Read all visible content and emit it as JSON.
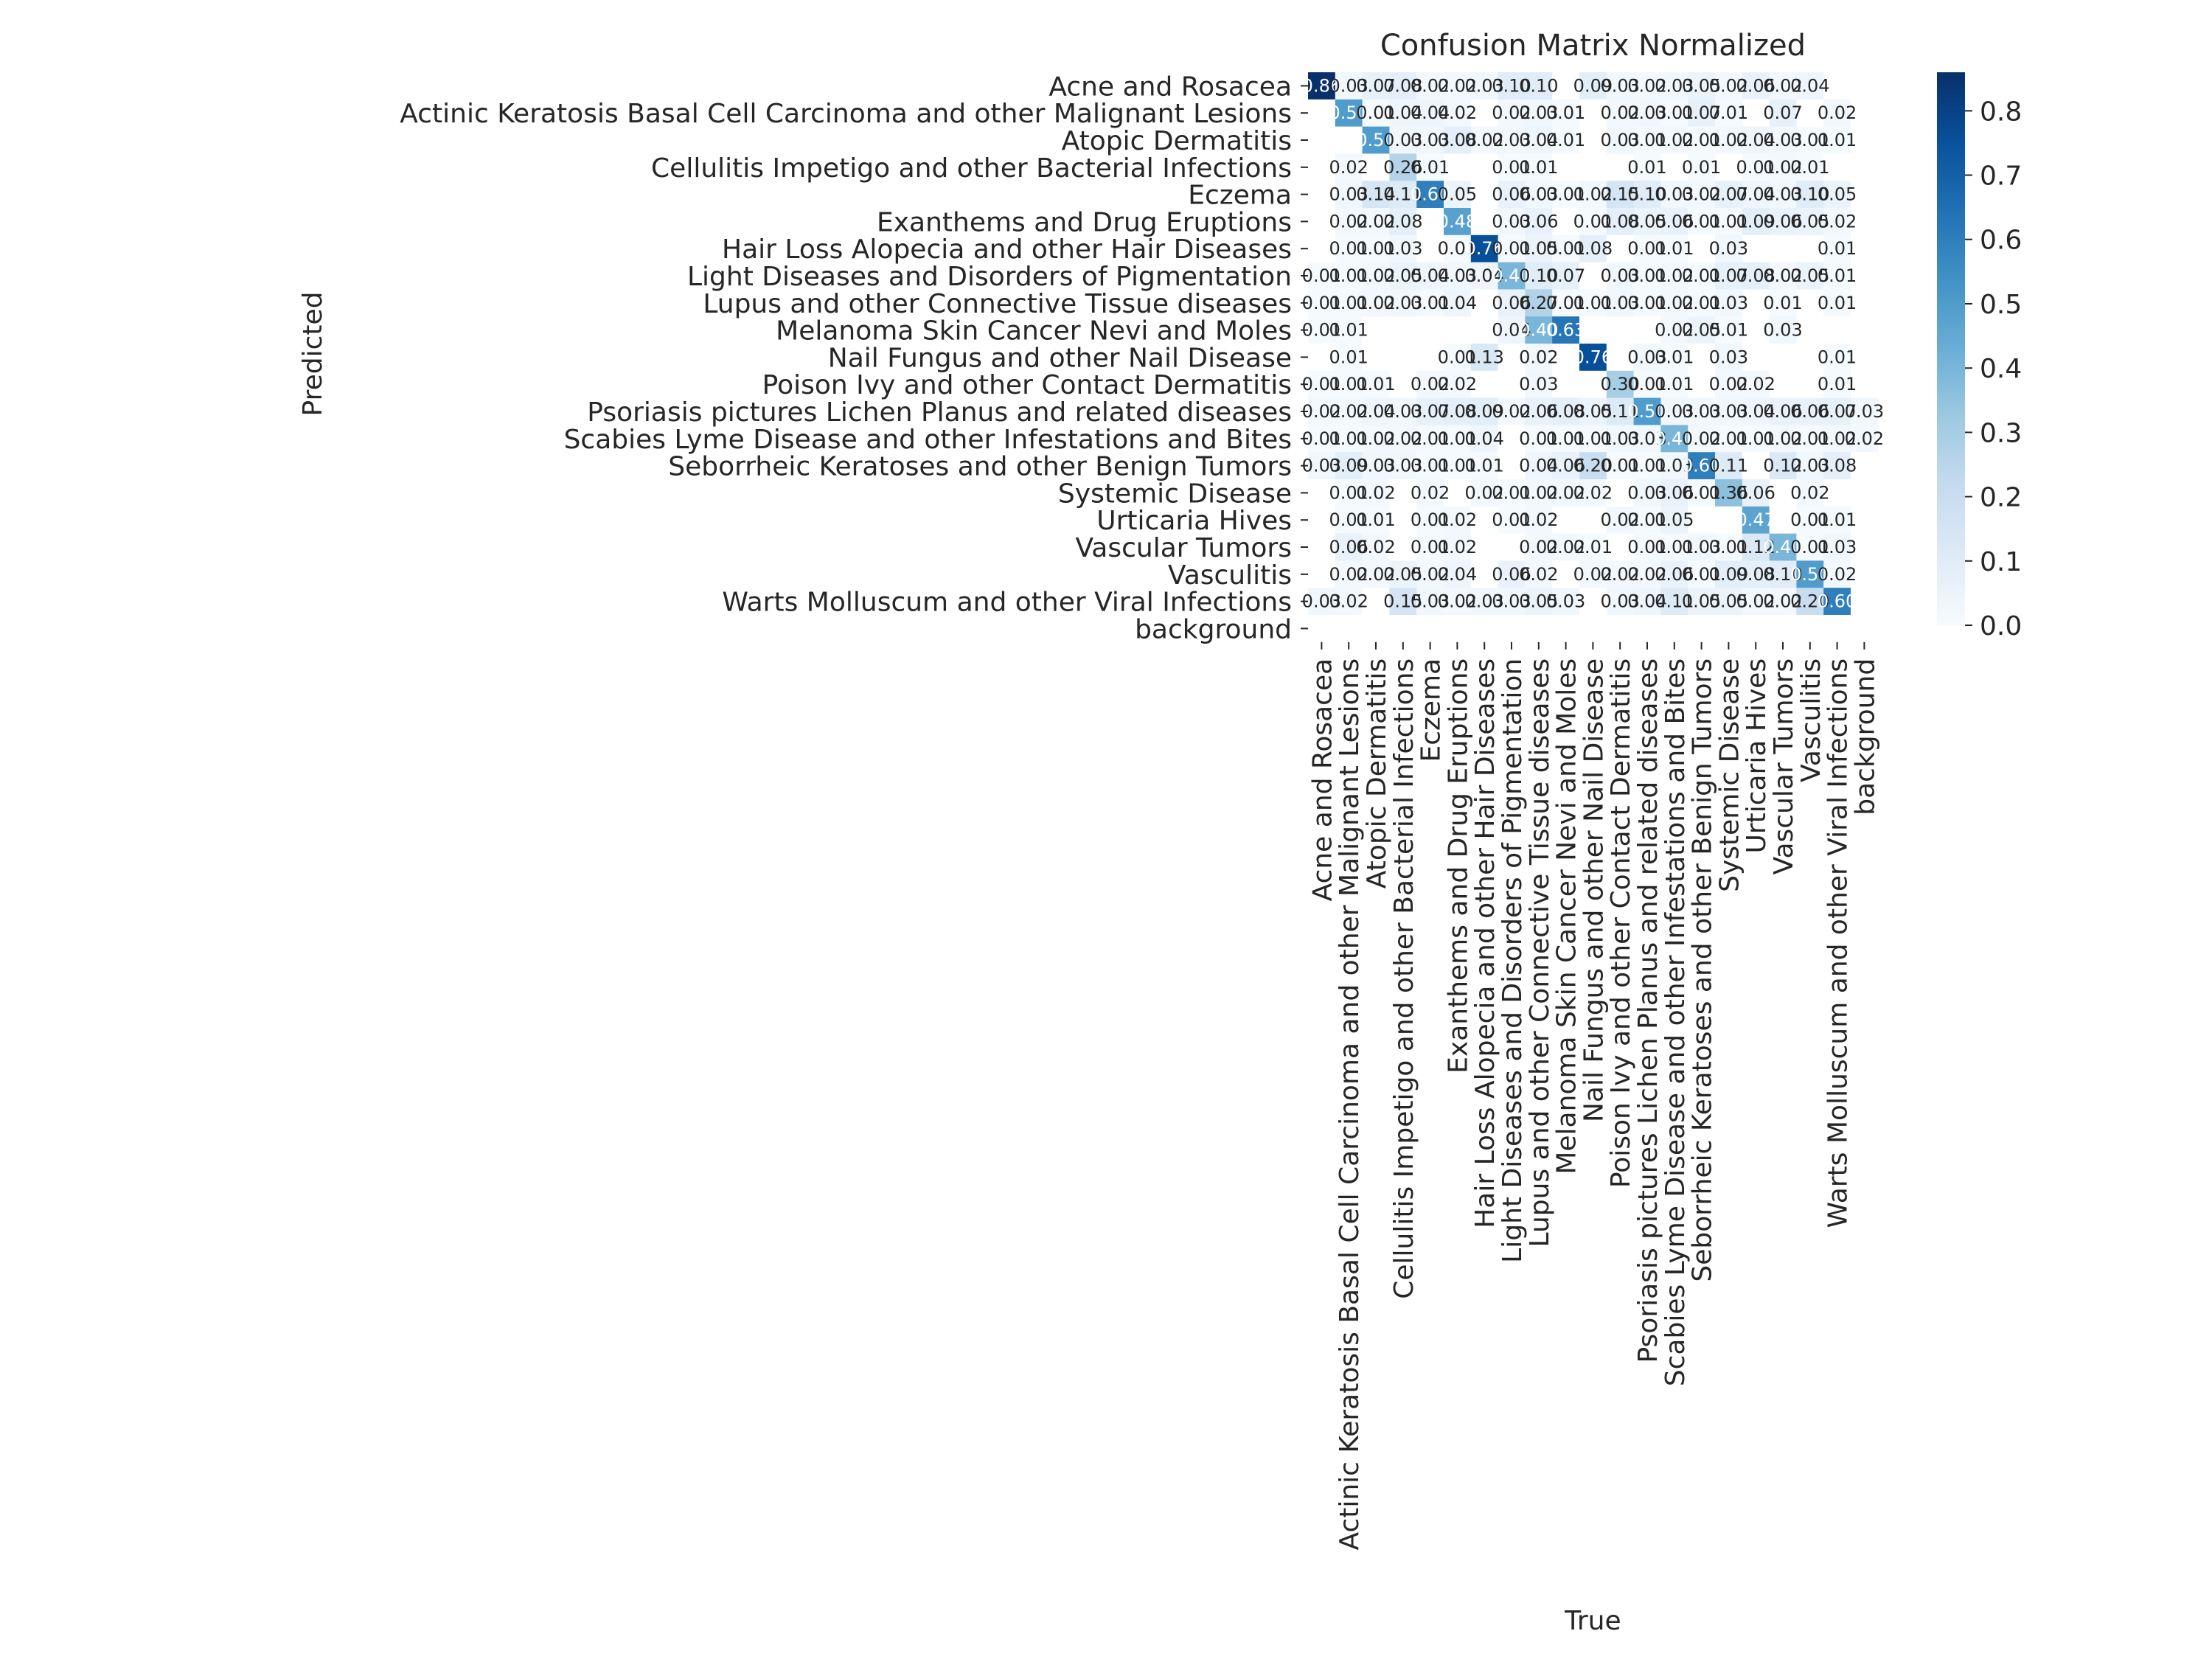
{
  "chart_data": {
    "type": "heatmap",
    "title": "Confusion Matrix Normalized",
    "xlabel": "True",
    "ylabel": "Predicted",
    "colormap": "Blues",
    "colorbar": {
      "min": 0.0,
      "max": 0.86,
      "ticks": [
        "0.0",
        "0.1",
        "0.2",
        "0.3",
        "0.4",
        "0.5",
        "0.6",
        "0.7",
        "0.8"
      ]
    },
    "categories": [
      "Acne and Rosacea",
      "Actinic Keratosis Basal Cell Carcinoma and other Malignant Lesions",
      "Atopic Dermatitis",
      "Cellulitis Impetigo and other Bacterial Infections",
      "Eczema",
      "Exanthems and Drug Eruptions",
      "Hair Loss  Alopecia and other Hair Diseases",
      "Light Diseases and Disorders of Pigmentation",
      "Lupus and other Connective Tissue diseases",
      "Melanoma Skin Cancer Nevi and Moles",
      "Nail Fungus and other Nail Disease",
      "Poison Ivy  and other Contact Dermatitis",
      "Psoriasis pictures Lichen Planus and related diseases",
      "Scabies Lyme Disease and other Infestations and Bites",
      "Seborrheic Keratoses and other Benign Tumors",
      "Systemic Disease",
      "Urticaria Hives",
      "Vascular Tumors",
      "Vasculitis",
      "Warts Molluscum and other Viral Infections",
      "background"
    ],
    "matrix": [
      [
        0.86,
        0.03,
        0.07,
        0.08,
        0.02,
        0.02,
        0.03,
        0.1,
        0.1,
        null,
        0.09,
        0.03,
        0.02,
        0.03,
        0.05,
        0.02,
        0.06,
        0.02,
        0.04,
        null,
        null
      ],
      [
        null,
        0.5,
        0.01,
        0.04,
        0.04,
        0.02,
        null,
        0.02,
        0.03,
        0.01,
        null,
        0.02,
        0.03,
        0.01,
        0.07,
        0.01,
        null,
        0.07,
        null,
        0.02,
        null
      ],
      [
        null,
        null,
        0.5,
        0.03,
        0.03,
        0.08,
        0.02,
        0.03,
        0.04,
        0.01,
        null,
        0.03,
        0.01,
        0.02,
        0.01,
        0.02,
        0.04,
        0.03,
        0.01,
        0.01,
        null
      ],
      [
        null,
        0.02,
        null,
        0.26,
        0.01,
        null,
        null,
        0.01,
        0.01,
        null,
        null,
        null,
        0.01,
        null,
        0.01,
        null,
        0.01,
        0.02,
        0.01,
        null,
        null
      ],
      [
        null,
        0.03,
        0.14,
        0.11,
        0.6,
        0.05,
        null,
        0.06,
        0.03,
        0.01,
        0.02,
        0.15,
        0.1,
        0.03,
        0.02,
        0.07,
        0.04,
        0.03,
        0.1,
        0.05,
        null
      ],
      [
        null,
        0.02,
        0.02,
        0.08,
        null,
        0.48,
        null,
        0.03,
        0.06,
        null,
        0.01,
        0.08,
        0.05,
        0.06,
        0.01,
        0.01,
        0.09,
        0.06,
        0.05,
        0.02,
        null
      ],
      [
        null,
        0.01,
        0.01,
        0.03,
        null,
        0.01,
        0.76,
        0.01,
        0.05,
        0.01,
        0.08,
        null,
        0.01,
        0.01,
        null,
        0.03,
        null,
        null,
        null,
        0.01,
        null
      ],
      [
        0.01,
        0.01,
        0.02,
        0.05,
        0.04,
        0.03,
        0.04,
        0.4,
        0.1,
        0.07,
        null,
        0.03,
        0.01,
        0.02,
        0.01,
        0.07,
        0.08,
        0.02,
        0.05,
        0.01,
        null
      ],
      [
        0.01,
        0.01,
        0.02,
        0.03,
        0.01,
        0.04,
        null,
        0.06,
        0.27,
        0.01,
        0.01,
        0.03,
        0.01,
        0.02,
        0.01,
        0.03,
        null,
        0.01,
        null,
        0.01,
        null
      ],
      [
        0.01,
        0.01,
        null,
        null,
        null,
        null,
        null,
        0.04,
        0.4,
        0.63,
        null,
        null,
        null,
        0.02,
        0.05,
        0.01,
        null,
        0.03,
        null,
        null,
        null
      ],
      [
        null,
        0.01,
        null,
        null,
        null,
        0.01,
        0.13,
        null,
        0.02,
        null,
        0.76,
        null,
        0.03,
        0.01,
        null,
        0.03,
        null,
        null,
        null,
        0.01,
        null
      ],
      [
        0.01,
        0.01,
        0.01,
        null,
        0.02,
        0.02,
        null,
        null,
        0.03,
        null,
        null,
        0.3,
        0.01,
        0.01,
        null,
        0.02,
        0.02,
        null,
        null,
        0.01,
        null
      ],
      [
        0.02,
        0.02,
        0.04,
        0.03,
        0.07,
        0.08,
        0.09,
        0.02,
        0.06,
        0.08,
        0.05,
        0.11,
        0.5,
        0.03,
        0.03,
        0.03,
        0.04,
        0.06,
        0.06,
        0.07,
        0.03
      ],
      [
        0.01,
        0.01,
        0.02,
        0.02,
        0.01,
        0.01,
        0.04,
        null,
        0.01,
        0.01,
        0.01,
        0.03,
        0.03,
        0.4,
        0.02,
        0.01,
        0.01,
        0.02,
        0.01,
        0.02,
        0.02
      ],
      [
        0.03,
        0.09,
        0.03,
        0.03,
        0.01,
        0.01,
        0.01,
        null,
        0.04,
        0.06,
        0.2,
        0.01,
        0.01,
        0.03,
        0.6,
        0.11,
        null,
        0.12,
        0.03,
        0.08,
        null
      ],
      [
        null,
        0.01,
        0.02,
        null,
        0.02,
        null,
        0.02,
        0.01,
        0.02,
        0.02,
        0.02,
        null,
        0.03,
        0.06,
        0.01,
        0.36,
        0.06,
        null,
        0.02,
        null,
        null
      ],
      [
        null,
        0.01,
        0.01,
        null,
        0.01,
        0.02,
        null,
        0.01,
        0.02,
        null,
        null,
        0.02,
        0.01,
        0.05,
        null,
        null,
        0.47,
        null,
        0.01,
        0.01,
        null
      ],
      [
        null,
        0.06,
        0.02,
        null,
        0.01,
        0.02,
        null,
        null,
        0.02,
        0.02,
        0.01,
        null,
        0.01,
        0.01,
        0.03,
        0.01,
        0.12,
        0.4,
        0.01,
        0.03,
        null
      ],
      [
        null,
        0.02,
        0.02,
        0.05,
        0.02,
        0.04,
        null,
        0.06,
        0.02,
        null,
        0.02,
        0.02,
        0.02,
        0.06,
        0.01,
        0.09,
        0.08,
        0.1,
        0.5,
        0.02,
        null
      ],
      [
        0.03,
        0.02,
        null,
        0.15,
        0.03,
        0.02,
        0.03,
        0.03,
        0.05,
        0.03,
        null,
        0.03,
        0.04,
        0.11,
        0.05,
        0.05,
        0.02,
        0.02,
        0.2,
        0.6,
        null
      ],
      [
        null,
        null,
        null,
        null,
        null,
        null,
        null,
        null,
        null,
        null,
        null,
        null,
        null,
        null,
        null,
        null,
        null,
        null,
        null,
        null,
        null
      ]
    ]
  }
}
